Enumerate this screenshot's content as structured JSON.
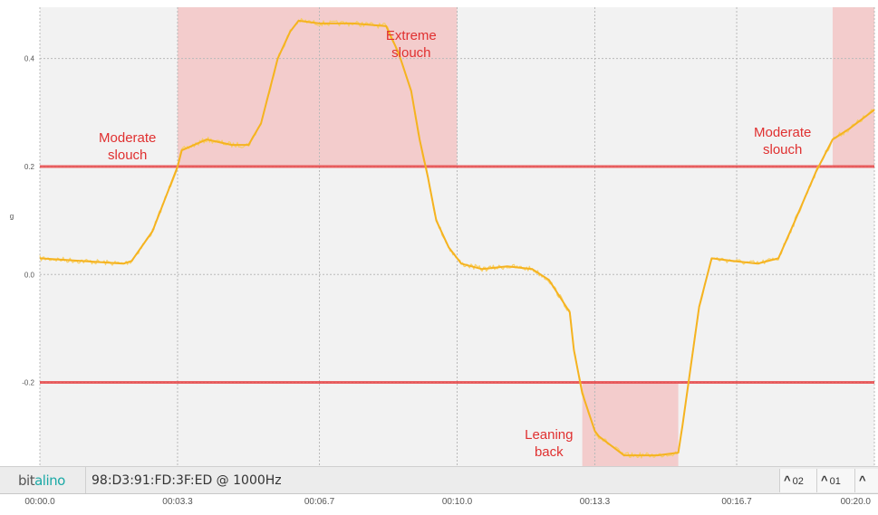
{
  "chart_data": {
    "type": "line",
    "ylabel": "g",
    "y_ticks": [
      "0.4",
      "0.2",
      "0.0",
      "-0.2"
    ],
    "y_tick_values": [
      0.4,
      0.2,
      0.0,
      -0.2
    ],
    "ylim": [
      -0.355,
      0.495
    ],
    "xlim": [
      0.0,
      20.0
    ],
    "x_tick_values": [
      0.0,
      3.3,
      6.7,
      10.0,
      13.3,
      16.7,
      20.0
    ],
    "x_ticks": [
      "00:00.0",
      "00:03.3",
      "00:06.7",
      "00:10.0",
      "00:13.3",
      "00:16.7",
      "00:20.0"
    ],
    "thresholds": [
      0.2,
      -0.2
    ],
    "series": [
      {
        "color": "#f5b320",
        "x": [
          0.0,
          2.0,
          2.2,
          2.7,
          3.1,
          3.3,
          3.4,
          4.0,
          4.6,
          5.0,
          5.3,
          5.7,
          6.0,
          6.2,
          6.7,
          7.5,
          8.3,
          8.6,
          8.9,
          9.1,
          9.3,
          9.5,
          9.8,
          10.1,
          10.6,
          11.2,
          11.8,
          12.2,
          12.7,
          12.8,
          13.0,
          13.3,
          13.4,
          14.0,
          14.8,
          15.3,
          15.4,
          15.6,
          15.8,
          16.1,
          16.6,
          17.2,
          17.7,
          18.1,
          18.6,
          19.0,
          19.4,
          20.0
        ],
        "y": [
          0.03,
          0.02,
          0.025,
          0.08,
          0.16,
          0.2,
          0.23,
          0.25,
          0.24,
          0.24,
          0.28,
          0.4,
          0.45,
          0.47,
          0.465,
          0.465,
          0.46,
          0.41,
          0.34,
          0.25,
          0.18,
          0.1,
          0.05,
          0.02,
          0.01,
          0.015,
          0.01,
          -0.01,
          -0.07,
          -0.14,
          -0.22,
          -0.29,
          -0.3,
          -0.335,
          -0.335,
          -0.33,
          -0.28,
          -0.17,
          -0.06,
          0.03,
          0.025,
          0.02,
          0.03,
          0.1,
          0.19,
          0.25,
          0.27,
          0.305
        ]
      }
    ],
    "highlight_regions": [
      {
        "label": "Moderate slouch",
        "x": [
          3.3,
          6.7
        ],
        "y": [
          0.2,
          0.495
        ]
      },
      {
        "label": "Extreme slouch",
        "x": [
          6.7,
          10.0
        ],
        "y": [
          0.2,
          0.495
        ]
      },
      {
        "label": "Leaning back",
        "x": [
          13.0,
          15.3
        ],
        "y": [
          -0.355,
          -0.2
        ]
      },
      {
        "label": "Moderate slouch",
        "x": [
          19.0,
          20.0
        ],
        "y": [
          0.2,
          0.495
        ]
      }
    ],
    "annotations": [
      {
        "id": "ann-moderate-left",
        "lines": [
          "Moderate",
          "slouch"
        ],
        "x": 2.1,
        "y": 0.245
      },
      {
        "id": "ann-extreme",
        "lines": [
          "Extreme",
          "slouch"
        ],
        "x": 8.9,
        "y": 0.435
      },
      {
        "id": "ann-leaning",
        "lines": [
          "Leaning",
          "back"
        ],
        "x": 12.2,
        "y": -0.305
      },
      {
        "id": "ann-moderate-right",
        "lines": [
          "Moderate",
          "slouch"
        ],
        "x": 17.8,
        "y": 0.255
      }
    ],
    "grid": true,
    "colors": {
      "signal": "#f5b320",
      "threshold": "#e8484a",
      "highlight": "#f3cccc",
      "annotation": "#e03030",
      "plot_bg": "#f2f2f2"
    }
  },
  "footer": {
    "brand_plain": "bit",
    "brand_accent": "alino",
    "device_label": "98:D3:91:FD:3F:ED @ 1000Hz",
    "channels": [
      {
        "icon": "chevron-up-icon",
        "label": "02"
      },
      {
        "icon": "chevron-up-icon",
        "label": "01"
      },
      {
        "icon": "chevron-up-icon",
        "label": ""
      }
    ]
  }
}
